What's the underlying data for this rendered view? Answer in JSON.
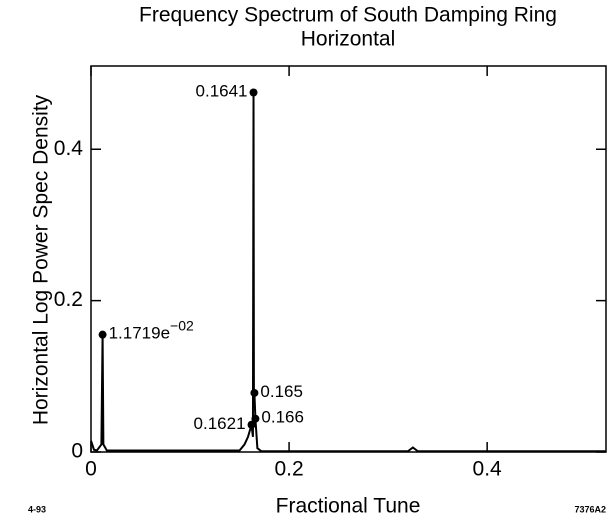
{
  "chart_data": {
    "type": "spectrum",
    "title": [
      "Frequency Spectrum of South Damping Ring",
      "Horizontal"
    ],
    "x_label": "Fractional Tune",
    "y_label": "Horizontal Log Power Spec Density",
    "footer_left": "4-93",
    "footer_right": "7376A2",
    "color": "#000000",
    "xlim": [
      0,
      0.52
    ],
    "ylim": [
      0,
      0.51
    ],
    "xticks": [
      0,
      0.2,
      0.4
    ],
    "yticks": [
      0,
      0.2,
      0.4
    ],
    "x": [
      0,
      0.003,
      0.006,
      0.0105,
      0.0117,
      0.0125,
      0.016,
      0.15,
      0.155,
      0.1585,
      0.1621,
      0.1635,
      0.1641,
      0.1645,
      0.165,
      0.166,
      0.168,
      0.172,
      0.32,
      0.325,
      0.33,
      0.52
    ],
    "values": [
      0.015,
      0.003,
      0.002,
      0.01,
      0.155,
      0.01,
      0.002,
      0.002,
      0.01,
      0.02,
      0.036,
      0.02,
      0.475,
      0.06,
      0.078,
      0.044,
      0.005,
      0.001,
      0.001,
      0.006,
      0.001,
      0.001
    ],
    "annotations": [
      {
        "label": "0.1641",
        "x": 0.1641,
        "y": 0.475,
        "side": "left"
      },
      {
        "label": "1.1719e",
        "sup": "−02",
        "x": 0.0117,
        "y": 0.155,
        "side": "right"
      },
      {
        "label": "0.165",
        "x": 0.165,
        "y": 0.078,
        "side": "right"
      },
      {
        "label": "0.166",
        "x": 0.166,
        "y": 0.044,
        "side": "right"
      },
      {
        "label": "0.1621",
        "x": 0.1621,
        "y": 0.036,
        "side": "left"
      }
    ]
  }
}
